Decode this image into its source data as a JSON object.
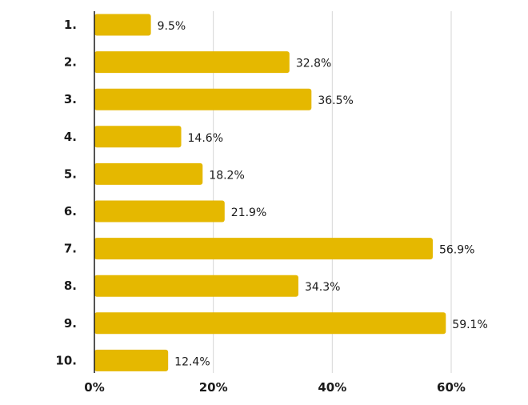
{
  "chart_data": {
    "type": "bar",
    "orientation": "horizontal",
    "title": "",
    "xlabel": "",
    "ylabel": "",
    "categories": [
      "1.",
      "2.",
      "3.",
      "4.",
      "5.",
      "6.",
      "7.",
      "8.",
      "9.",
      "10."
    ],
    "values": [
      9.5,
      32.8,
      36.5,
      14.6,
      18.2,
      21.9,
      56.9,
      34.3,
      59.1,
      12.4
    ],
    "value_labels": [
      "9.5%",
      "32.8%",
      "36.5%",
      "14.6%",
      "18.2%",
      "21.9%",
      "56.9%",
      "34.3%",
      "59.1%",
      "12.4%"
    ],
    "xlim": [
      0,
      60
    ],
    "x_ticks": [
      0,
      20,
      40,
      60
    ],
    "x_tick_labels": [
      "0%",
      "20%",
      "40%",
      "60%"
    ],
    "grid": true,
    "legend": "none",
    "bar_color": "#e5b800",
    "grid_color": "#d6d6d6",
    "text_color": "#1a1a1a"
  }
}
